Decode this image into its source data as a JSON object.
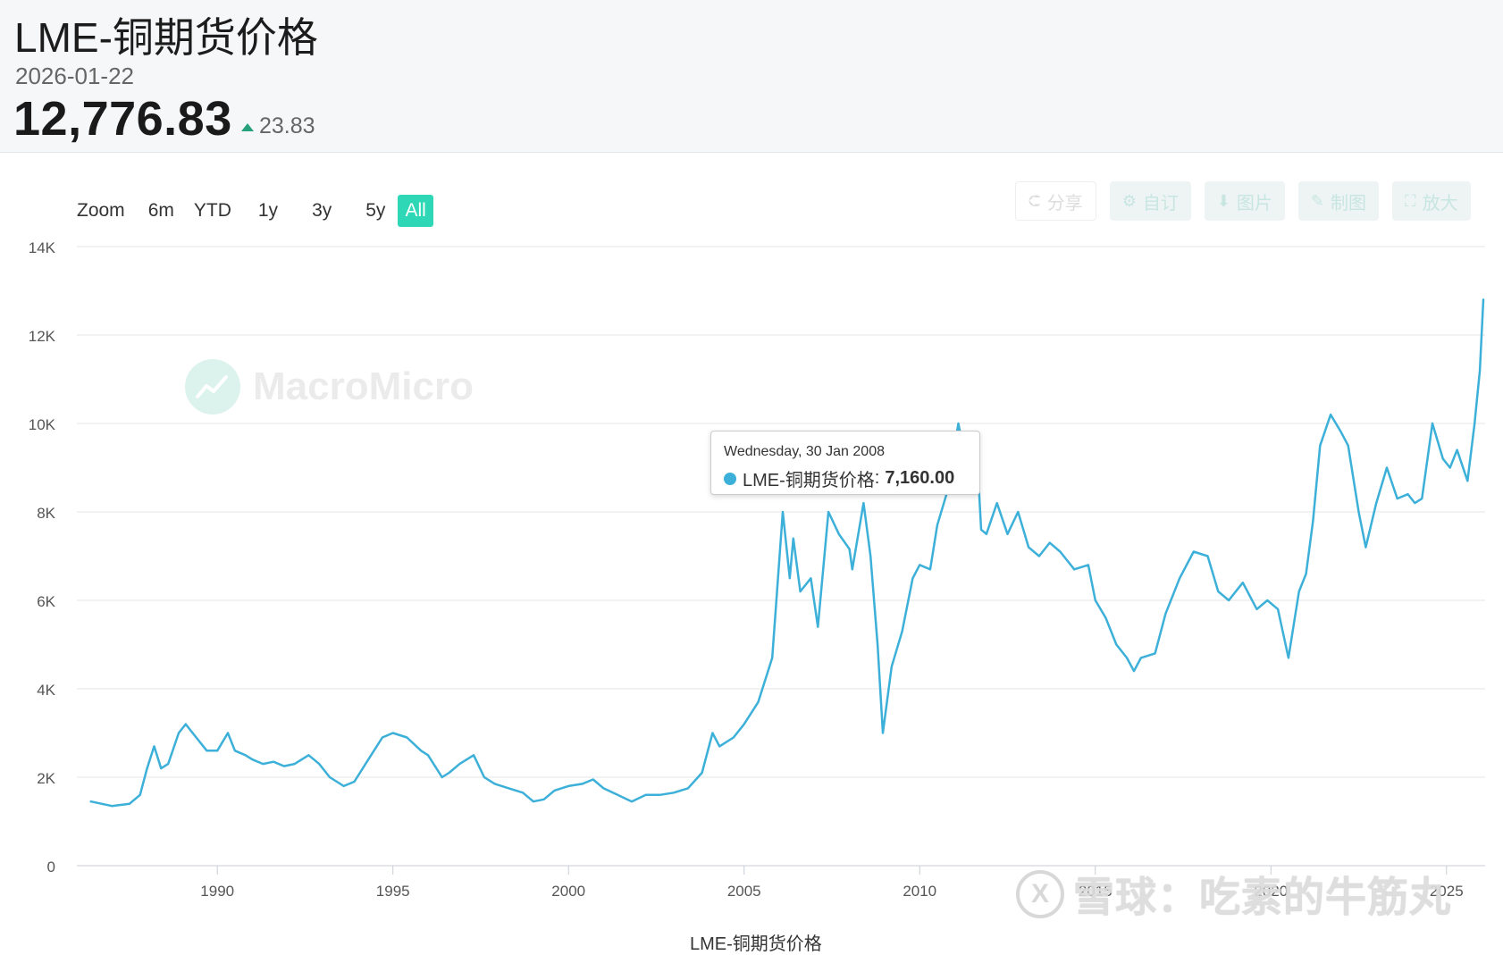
{
  "header": {
    "title": "LME-铜期货价格",
    "date": "2026-01-22",
    "price": "12,776.83",
    "change": "23.83",
    "change_color": "#27a17c"
  },
  "zoom": {
    "label": "Zoom",
    "options": [
      "6m",
      "YTD",
      "1y",
      "3y",
      "5y",
      "All"
    ],
    "active": "All",
    "active_color": "#2ed8b6"
  },
  "toolbar": {
    "share": "分享",
    "customize": "自订",
    "image": "图片",
    "draw": "制图",
    "enlarge": "放大"
  },
  "watermark": {
    "macromicro": "MacroMicro",
    "xueqiu_logo": "X",
    "xueqiu": "雪球：吃素的牛筋丸"
  },
  "tooltip": {
    "date": "Wednesday, 30 Jan 2008",
    "series": "LME-铜期货价格",
    "value": "7,160.00"
  },
  "legend": {
    "text": "LME-铜期货价格"
  },
  "chart_data": {
    "type": "line",
    "title": "",
    "xlabel": "",
    "ylabel": "",
    "x_range": [
      1986.0,
      2026.1
    ],
    "ylim": [
      0,
      14000
    ],
    "y_ticks": [
      0,
      2000,
      4000,
      6000,
      8000,
      10000,
      12000,
      14000
    ],
    "y_tick_labels": [
      "0",
      "2K",
      "4K",
      "6K",
      "8K",
      "10K",
      "12K",
      "14K"
    ],
    "x_ticks": [
      1990,
      1995,
      2000,
      2005,
      2010,
      2015,
      2020,
      2025
    ],
    "x_tick_labels": [
      "1990",
      "1995",
      "2000",
      "2005",
      "2010",
      "2015",
      "2020",
      "2025"
    ],
    "grid": true,
    "series": [
      {
        "name": "LME-铜期货价格",
        "color": "#3cb0d8",
        "x": [
          1986.4,
          1986.7,
          1987.0,
          1987.5,
          1987.8,
          1988.0,
          1988.2,
          1988.4,
          1988.6,
          1988.9,
          1989.1,
          1989.4,
          1989.7,
          1990.0,
          1990.3,
          1990.5,
          1990.8,
          1991.0,
          1991.3,
          1991.6,
          1991.9,
          1992.2,
          1992.6,
          1992.9,
          1993.2,
          1993.6,
          1993.9,
          1994.3,
          1994.7,
          1995.0,
          1995.4,
          1995.8,
          1996.0,
          1996.4,
          1996.6,
          1996.9,
          1997.3,
          1997.6,
          1997.9,
          1998.3,
          1998.7,
          1999.0,
          1999.3,
          1999.6,
          2000.0,
          2000.4,
          2000.7,
          2001.0,
          2001.4,
          2001.8,
          2002.2,
          2002.6,
          2003.0,
          2003.4,
          2003.8,
          2004.1,
          2004.3,
          2004.7,
          2005.0,
          2005.4,
          2005.8,
          2006.1,
          2006.3,
          2006.4,
          2006.6,
          2006.9,
          2007.1,
          2007.4,
          2007.7,
          2008.0,
          2008.08,
          2008.4,
          2008.6,
          2008.8,
          2008.95,
          2009.2,
          2009.5,
          2009.8,
          2010.0,
          2010.3,
          2010.5,
          2010.8,
          2011.1,
          2011.3,
          2011.6,
          2011.75,
          2011.9,
          2012.2,
          2012.5,
          2012.8,
          2013.1,
          2013.4,
          2013.7,
          2014.0,
          2014.4,
          2014.8,
          2015.0,
          2015.3,
          2015.6,
          2015.9,
          2016.1,
          2016.3,
          2016.7,
          2017.0,
          2017.4,
          2017.8,
          2018.2,
          2018.5,
          2018.8,
          2019.2,
          2019.6,
          2019.9,
          2020.2,
          2020.5,
          2020.8,
          2021.0,
          2021.2,
          2021.4,
          2021.7,
          2022.0,
          2022.2,
          2022.5,
          2022.7,
          2023.0,
          2023.3,
          2023.6,
          2023.9,
          2024.1,
          2024.3,
          2024.6,
          2024.9,
          2025.1,
          2025.3,
          2025.6,
          2025.8,
          2025.95,
          2026.05
        ],
        "y": [
          1450,
          1400,
          1350,
          1400,
          1600,
          2200,
          2700,
          2200,
          2300,
          3000,
          3200,
          2900,
          2600,
          2600,
          3000,
          2600,
          2500,
          2400,
          2300,
          2350,
          2250,
          2300,
          2500,
          2300,
          2000,
          1800,
          1900,
          2400,
          2900,
          3000,
          2900,
          2600,
          2500,
          2000,
          2100,
          2300,
          2500,
          2000,
          1850,
          1750,
          1650,
          1450,
          1500,
          1700,
          1800,
          1850,
          1950,
          1750,
          1600,
          1450,
          1600,
          1600,
          1650,
          1750,
          2100,
          3000,
          2700,
          2900,
          3200,
          3700,
          4700,
          8000,
          6500,
          7400,
          6200,
          6500,
          5400,
          8000,
          7500,
          7160,
          6700,
          8200,
          7000,
          5000,
          3000,
          4500,
          5300,
          6500,
          6800,
          6700,
          7700,
          8500,
          10000,
          9200,
          9800,
          7600,
          7500,
          8200,
          7500,
          8000,
          7200,
          7000,
          7300,
          7100,
          6700,
          6800,
          6000,
          5600,
          5000,
          4700,
          4400,
          4700,
          4800,
          5700,
          6500,
          7100,
          7000,
          6200,
          6000,
          6400,
          5800,
          6000,
          5800,
          4700,
          6200,
          6600,
          7800,
          9500,
          10200,
          9800,
          9500,
          8000,
          7200,
          8200,
          9000,
          8300,
          8400,
          8200,
          8300,
          10000,
          9200,
          9000,
          9400,
          8700,
          10000,
          11200,
          12800
        ]
      }
    ]
  }
}
